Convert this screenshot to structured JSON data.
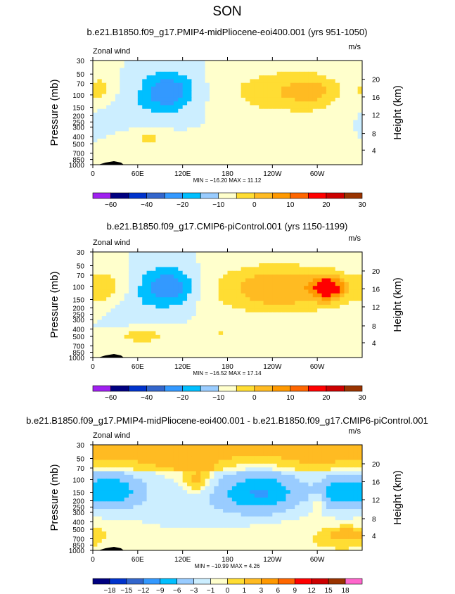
{
  "figure": {
    "season": "SON"
  },
  "chart_data": [
    {
      "type": "heatmap",
      "title": "b.e21.B1850.f09_g17.PMIP4-midPliocene-eoi400.001 (yrs 951-1050)",
      "field_label": "Zonal wind",
      "units": "m/s",
      "ylabel": "Pressure  (mb)",
      "y2label": "Height  (km)",
      "xticks": [
        "0",
        "60E",
        "120E",
        "180",
        "120W",
        "60W"
      ],
      "yticks": [
        "30",
        "50",
        "70",
        "100",
        "150",
        "200",
        "250",
        "300",
        "400",
        "500",
        "700",
        "850",
        "1000"
      ],
      "y2ticks": [
        "20",
        "16",
        "12",
        "8",
        "4"
      ],
      "min_max": "MIN = −16.20   MAX =  11.12",
      "min": -16.2,
      "max": 11.12,
      "colorbar_labels": [
        "−60",
        "−40",
        "−20",
        "−10",
        "0",
        "10",
        "20",
        "30"
      ],
      "colors": [
        "#a020f0",
        "#000080",
        "#0033cc",
        "#3366cc",
        "#3399ff",
        "#00bfff",
        "#99ccff",
        "#cceeff",
        "#ffffcc",
        "#ffdd33",
        "#ffbb22",
        "#ff9900",
        "#ff6600",
        "#ff0000",
        "#cc0000",
        "#993300",
        "#ff66cc"
      ],
      "features": [
        {
          "lon": 100,
          "lev": 0.3,
          "val": -15,
          "sx": 25,
          "sy": 0.13
        },
        {
          "lon": 260,
          "lev": 0.3,
          "val": 10,
          "sx": 55,
          "sy": 0.15
        },
        {
          "lon": 295,
          "lev": 0.3,
          "val": 5,
          "sx": 18,
          "sy": 0.1
        },
        {
          "lon": 10,
          "lev": 0.28,
          "val": 6,
          "sx": 12,
          "sy": 0.1
        },
        {
          "lon": 75,
          "lev": 0.75,
          "val": 6,
          "sx": 20,
          "sy": 0.05
        },
        {
          "lon": 185,
          "lev": 0.75,
          "val": 5,
          "sx": 30,
          "sy": 0.05
        },
        {
          "lon": 40,
          "lev": 0.48,
          "val": -3,
          "sx": 30,
          "sy": 0.1
        }
      ]
    },
    {
      "type": "heatmap",
      "title": "b.e21.B1850.f09_g17.CMIP6-piControl.001 (yrs 1150-1199)",
      "field_label": "Zonal wind",
      "units": "m/s",
      "ylabel": "Pressure  (mb)",
      "y2label": "Height  (km)",
      "xticks": [
        "0",
        "60E",
        "120E",
        "180",
        "120W",
        "60W"
      ],
      "yticks": [
        "30",
        "50",
        "70",
        "100",
        "150",
        "200",
        "250",
        "300",
        "400",
        "500",
        "700",
        "850",
        "1000"
      ],
      "y2ticks": [
        "20",
        "16",
        "12",
        "8",
        "4"
      ],
      "min_max": "MIN = −16.52   MAX =  17.14",
      "min": -16.52,
      "max": 17.14,
      "colorbar_labels": [
        "−60",
        "−40",
        "−20",
        "−10",
        "0",
        "10",
        "20",
        "30"
      ],
      "colors": [
        "#a020f0",
        "#000080",
        "#0033cc",
        "#3366cc",
        "#3399ff",
        "#00bfff",
        "#99ccff",
        "#cceeff",
        "#ffffcc",
        "#ffdd33",
        "#ffbb22",
        "#ff9900",
        "#ff6600",
        "#ff0000",
        "#cc0000",
        "#993300",
        "#ff66cc"
      ],
      "features": [
        {
          "lon": 100,
          "lev": 0.33,
          "val": -15,
          "sx": 25,
          "sy": 0.13
        },
        {
          "lon": 250,
          "lev": 0.35,
          "val": 15,
          "sx": 60,
          "sy": 0.16
        },
        {
          "lon": 315,
          "lev": 0.34,
          "val": 20,
          "sx": 15,
          "sy": 0.08
        },
        {
          "lon": 15,
          "lev": 0.35,
          "val": 8,
          "sx": 20,
          "sy": 0.12
        },
        {
          "lon": 65,
          "lev": 0.8,
          "val": 8,
          "sx": 22,
          "sy": 0.05
        },
        {
          "lon": 170,
          "lev": 0.78,
          "val": 5,
          "sx": 35,
          "sy": 0.05
        },
        {
          "lon": 40,
          "lev": 0.5,
          "val": -3,
          "sx": 30,
          "sy": 0.12
        }
      ]
    },
    {
      "type": "heatmap",
      "title": "b.e21.B1850.f09_g17.PMIP4-midPliocene-eoi400.001 - b.e21.B1850.f09_g17.CMIP6-piControl.001",
      "field_label": "Zonal wind",
      "units": "m/s",
      "ylabel": "Pressure  (mb)",
      "y2label": "Height  (km)",
      "xticks": [
        "0",
        "60E",
        "120E",
        "180",
        "120W",
        "60W"
      ],
      "yticks": [
        "30",
        "50",
        "70",
        "100",
        "150",
        "200",
        "250",
        "300",
        "400",
        "500",
        "700",
        "850",
        "1000"
      ],
      "y2ticks": [
        "20",
        "16",
        "12",
        "8",
        "4"
      ],
      "min_max": "MIN = −10.99   MAX =   4.26",
      "min": -10.99,
      "max": 4.26,
      "colorbar_labels": [
        "−18",
        "−15",
        "−12",
        "−9",
        "−6",
        "−3",
        "−1",
        "0",
        "1",
        "3",
        "6",
        "9",
        "12",
        "15",
        "18"
      ],
      "colors": [
        "#a020f0",
        "#000080",
        "#0033cc",
        "#3366cc",
        "#3399ff",
        "#00bfff",
        "#99ccff",
        "#cceeff",
        "#ffffcc",
        "#ffdd33",
        "#ffbb22",
        "#ff9900",
        "#ff6600",
        "#ff0000",
        "#cc0000",
        "#993300",
        "#ff66cc"
      ],
      "features": [
        {
          "lon": 25,
          "lev": 0.43,
          "val": -8,
          "sx": 28,
          "sy": 0.12
        },
        {
          "lon": 225,
          "lev": 0.45,
          "val": -9,
          "sx": 40,
          "sy": 0.14
        },
        {
          "lon": 330,
          "lev": 0.45,
          "val": -7,
          "sx": 20,
          "sy": 0.12
        },
        {
          "lon": 140,
          "lev": 0.35,
          "val": 3,
          "sx": 15,
          "sy": 0.1
        },
        {
          "lon": 120,
          "lev": 0.55,
          "val": -2,
          "sx": 60,
          "sy": 0.2
        },
        {
          "lon": 300,
          "lev": 0.55,
          "val": 2.5,
          "sx": 6,
          "sy": 0.06
        },
        {
          "lon": 340,
          "lev": 0.85,
          "val": 3,
          "sx": 15,
          "sy": 0.04
        }
      ]
    }
  ]
}
